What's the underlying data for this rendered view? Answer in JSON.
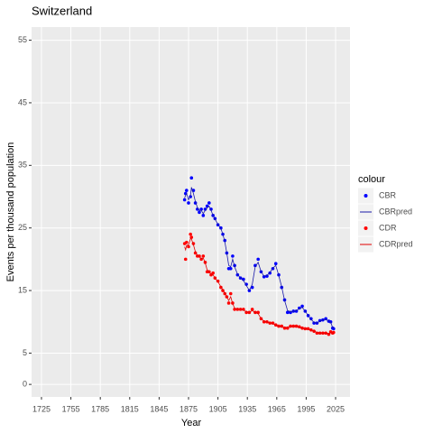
{
  "chart_data": {
    "type": "scatter_line",
    "title": "Switzerland",
    "xlabel": "Year",
    "ylabel": "Events per thousand population",
    "legend_title": "colour",
    "legend": "right",
    "grid": true,
    "xlim": [
      1714.9,
      2039.7
    ],
    "xticks": [
      1725,
      1755,
      1785,
      1815,
      1845,
      1875,
      1905,
      1935,
      1965,
      1995,
      2025
    ],
    "ylim": [
      -2.0,
      57.1
    ],
    "yticks": [
      0,
      5,
      15,
      25,
      35,
      45,
      55
    ],
    "x": [
      1871,
      1872,
      1873,
      1875,
      1877,
      1878,
      1880,
      1882,
      1884,
      1886,
      1888,
      1890,
      1892,
      1894,
      1896,
      1898,
      1900,
      1902,
      1905,
      1908,
      1910,
      1912,
      1914,
      1916,
      1918,
      1920,
      1922,
      1925,
      1928,
      1931,
      1934,
      1937,
      1940,
      1943,
      1946,
      1949,
      1952,
      1955,
      1958,
      1961,
      1964,
      1967,
      1970,
      1973,
      1976,
      1979,
      1982,
      1985,
      1988,
      1991,
      1994,
      1997,
      2000,
      2003,
      2006,
      2009,
      2012,
      2015,
      2018,
      2020,
      2022,
      2023
    ],
    "series": [
      {
        "name": "CBR",
        "color": "#0000ff",
        "mark": "point",
        "values": [
          29.5,
          30.5,
          31,
          29,
          30,
          33,
          31,
          29,
          28,
          27.5,
          28,
          27,
          28,
          28.5,
          29,
          28,
          27,
          26.5,
          25.5,
          25,
          24,
          23,
          21,
          18.5,
          18.5,
          20.5,
          19,
          17.5,
          17,
          16.8,
          16,
          15,
          15.5,
          19,
          20,
          18,
          17.2,
          17.3,
          17.8,
          18.5,
          19.3,
          17.5,
          15.5,
          13.5,
          11.5,
          11.5,
          11.7,
          11.7,
          12.2,
          12.5,
          11.7,
          11,
          10.5,
          9.8,
          9.8,
          10.2,
          10.3,
          10.5,
          10.1,
          10,
          9,
          8.9
        ]
      },
      {
        "name": "CBRpred",
        "color": "#1a1aa8",
        "mark": "line",
        "values": [
          29.8,
          30.2,
          30.5,
          29.5,
          30.2,
          31.5,
          30.5,
          29.2,
          28.3,
          27.8,
          27.8,
          27.3,
          27.8,
          28.2,
          28.5,
          27.8,
          27,
          26.4,
          25.6,
          24.9,
          24,
          22.8,
          21,
          19,
          18.8,
          20,
          18.8,
          17.6,
          17,
          16.6,
          15.8,
          15,
          16,
          18.8,
          19.5,
          18,
          17.3,
          17.4,
          17.9,
          18.6,
          19,
          17.4,
          15.6,
          13.4,
          11.8,
          11.6,
          11.7,
          11.8,
          12.1,
          12.3,
          11.7,
          11,
          10.4,
          9.9,
          9.8,
          10.1,
          10.3,
          10.4,
          10.1,
          9.9,
          9.1,
          8.9
        ]
      },
      {
        "name": "CDR",
        "color": "#ff0000",
        "mark": "point",
        "values": [
          22.5,
          20,
          22.7,
          22,
          24,
          23.5,
          22.5,
          21,
          20.5,
          20.5,
          20,
          20.5,
          19.5,
          18,
          18,
          17.5,
          17.8,
          17,
          16.5,
          15.5,
          15,
          14.5,
          14,
          13,
          14.5,
          13,
          12,
          12,
          12,
          12,
          11.5,
          11.5,
          12,
          11.5,
          11.5,
          10.5,
          10,
          10,
          9.8,
          9.8,
          9.5,
          9.3,
          9.3,
          9,
          9,
          9.3,
          9.3,
          9.3,
          9.2,
          9,
          8.9,
          8.9,
          8.7,
          8.5,
          8.2,
          8.2,
          8.2,
          8.2,
          8,
          8.4,
          8.2,
          8.3
        ]
      },
      {
        "name": "CDRpred",
        "color": "#e00000",
        "mark": "line",
        "values": [
          22,
          21.5,
          22.2,
          22.3,
          23.3,
          23.2,
          22.3,
          21.2,
          20.6,
          20.4,
          20.1,
          20.2,
          19.4,
          18.3,
          18,
          17.6,
          17.5,
          17,
          16.4,
          15.6,
          15.1,
          14.6,
          14,
          13.4,
          14,
          12.9,
          12.2,
          12,
          12,
          11.9,
          11.6,
          11.5,
          11.8,
          11.5,
          11.3,
          10.5,
          10.1,
          10,
          9.8,
          9.7,
          9.5,
          9.3,
          9.2,
          9.1,
          9.1,
          9.2,
          9.3,
          9.2,
          9.1,
          9,
          8.9,
          8.8,
          8.7,
          8.5,
          8.3,
          8.2,
          8.2,
          8.2,
          8.1,
          8.3,
          8.2,
          8.2
        ]
      }
    ]
  }
}
